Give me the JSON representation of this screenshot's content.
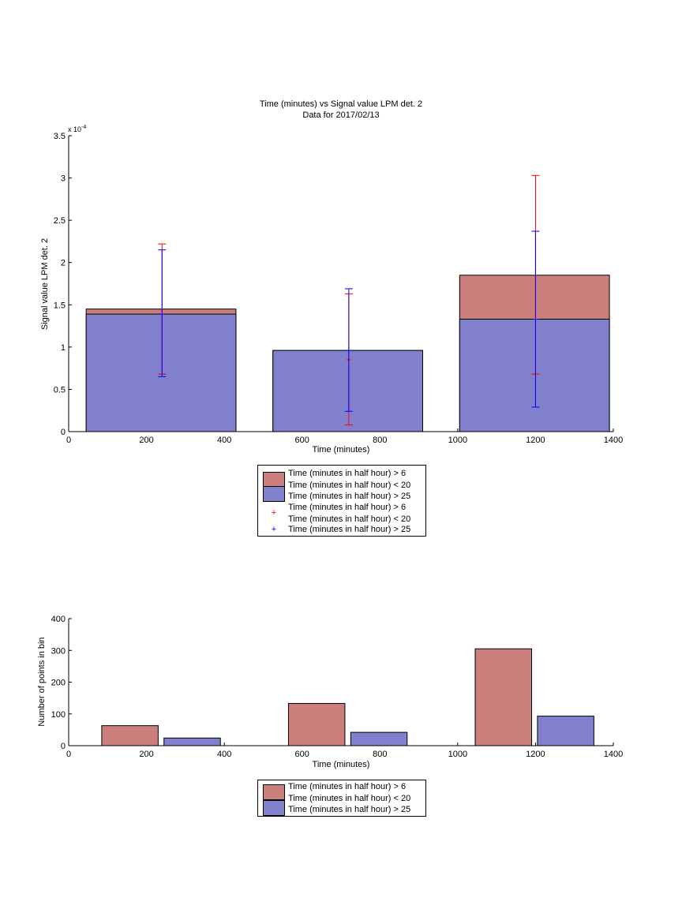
{
  "colors": {
    "series_red_fill": "#CA7F7C",
    "series_blue_fill": "#8080CC",
    "errorbar_red": "#FF0000",
    "errorbar_blue": "#0000FF",
    "axis": "#000000"
  },
  "chart_data": [
    {
      "type": "bar",
      "title": "Time (minutes) vs Signal value LPM det. 2",
      "subtitle": "Data for 2017/02/13",
      "xlabel": "Time (minutes)",
      "ylabel": "Signal value LPM det. 2",
      "y_exponent_label": "x 10",
      "y_exponent_power": "-4",
      "xlim": [
        0,
        1400
      ],
      "ylim": [
        0,
        3.5
      ],
      "y_scale_factor": 0.0001,
      "x_ticks": [
        "0",
        "200",
        "400",
        "600",
        "800",
        "1000",
        "1200",
        "1400"
      ],
      "y_ticks": [
        "0",
        "0.5",
        "1",
        "1.5",
        "2",
        "2.5",
        "3",
        "3.5"
      ],
      "grid": false,
      "legend_position": "below",
      "bars": [
        {
          "x0": 45,
          "x1": 430,
          "center": 240
        },
        {
          "x0": 525,
          "x1": 910,
          "center": 720
        },
        {
          "x0": 1005,
          "x1": 1390,
          "center": 1200
        }
      ],
      "series": [
        {
          "name": "Time (minutes in half hour) > 6\nTime (minutes in half hour) < 20",
          "color_key": "series_red_fill",
          "values": [
            1.45,
            0.96,
            1.85
          ],
          "errorbars": {
            "color_key": "errorbar_red",
            "low": [
              0.68,
              0.08,
              0.68
            ],
            "high": [
              2.22,
              1.63,
              3.03
            ],
            "mid": [
              0.68,
              0.85,
              0.68
            ]
          }
        },
        {
          "name": "Time (minutes in half hour) > 25",
          "color_key": "series_blue_fill",
          "values": [
            1.39,
            0.96,
            1.33
          ],
          "errorbars": {
            "color_key": "errorbar_blue",
            "low": [
              0.65,
              0.24,
              0.29
            ],
            "high": [
              2.15,
              1.69,
              2.37
            ],
            "mid": [
              1.39,
              0.96,
              1.33
            ]
          }
        }
      ],
      "legend": [
        {
          "kind": "patch",
          "color_key": "series_red_fill",
          "lines": [
            "Time (minutes in half hour) > 6",
            "Time (minutes in half hour) < 20"
          ]
        },
        {
          "kind": "patch",
          "color_key": "series_blue_fill",
          "lines": [
            "Time (minutes in half hour) > 25"
          ]
        },
        {
          "kind": "marker",
          "color_key": "errorbar_red",
          "lines": [
            "Time (minutes in half hour) > 6",
            "Time (minutes in half hour) < 20"
          ]
        },
        {
          "kind": "marker",
          "color_key": "errorbar_blue",
          "lines": [
            "Time (minutes in half hour) > 25"
          ]
        }
      ]
    },
    {
      "type": "bar",
      "xlabel": "Time (minutes)",
      "ylabel": "Number of points in bin",
      "xlim": [
        0,
        1400
      ],
      "ylim": [
        0,
        400
      ],
      "x_ticks": [
        "0",
        "200",
        "400",
        "600",
        "800",
        "1000",
        "1200",
        "1400"
      ],
      "y_ticks": [
        "0",
        "100",
        "200",
        "300",
        "400"
      ],
      "grid": false,
      "legend_position": "below",
      "groups": [
        {
          "red": {
            "x0": 85,
            "x1": 230
          },
          "blue": {
            "x0": 245,
            "x1": 390
          }
        },
        {
          "red": {
            "x0": 565,
            "x1": 710
          },
          "blue": {
            "x0": 725,
            "x1": 870
          }
        },
        {
          "red": {
            "x0": 1045,
            "x1": 1190
          },
          "blue": {
            "x0": 1205,
            "x1": 1350
          }
        }
      ],
      "series": [
        {
          "name": "Time (minutes in half hour) > 6\nTime (minutes in half hour) < 20",
          "color_key": "series_red_fill",
          "values": [
            63,
            133,
            305
          ]
        },
        {
          "name": "Time (minutes in half hour) > 25",
          "color_key": "series_blue_fill",
          "values": [
            24,
            42,
            93
          ]
        }
      ],
      "legend": [
        {
          "kind": "patch",
          "color_key": "series_red_fill",
          "lines": [
            "Time (minutes in half hour) > 6",
            "Time (minutes in half hour) < 20"
          ]
        },
        {
          "kind": "patch",
          "color_key": "series_blue_fill",
          "lines": [
            "Time (minutes in half hour) > 25"
          ]
        }
      ]
    }
  ]
}
